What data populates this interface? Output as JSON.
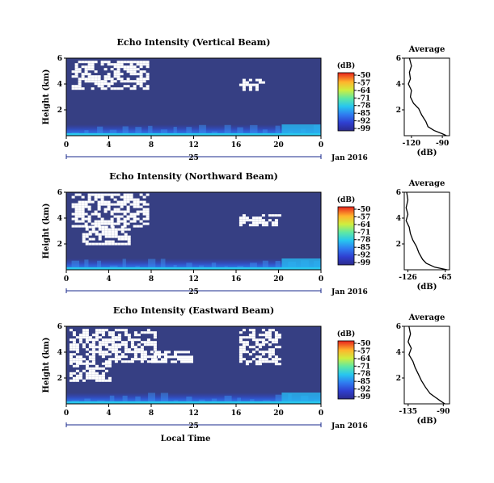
{
  "chart_data": [
    {
      "type": "heatmap",
      "title": "Echo Intensity (Vertical Beam)",
      "ylabel": "Height (km)",
      "yticks": [
        "6",
        "4",
        "2"
      ],
      "xticks": [
        "0",
        "4",
        "8",
        "12",
        "16",
        "20",
        "0"
      ],
      "xlim": [
        0,
        24
      ],
      "ylim": [
        0,
        6
      ],
      "date_day": "25",
      "date_month": "Jan 2016",
      "colorbar": {
        "unit": "(dB)",
        "ticks": [
          "-50",
          "-57",
          "-64",
          "-71",
          "-78",
          "-85",
          "-92",
          "-99"
        ]
      },
      "clutter_regions": [
        {
          "t0": 0.5,
          "t1": 7.8,
          "h0": 3.6,
          "h1": 5.8
        },
        {
          "t0": 16.3,
          "t1": 18.5,
          "h0": 3.6,
          "h1": 4.4
        }
      ],
      "profile": {
        "title": "Average",
        "xlabel": "(dB)",
        "xticks": [
          "-120",
          "-90"
        ],
        "yticks": [
          "6",
          "4",
          "2"
        ],
        "xlim": [
          -127,
          -83
        ],
        "points": [
          [
            -122,
            6.0
          ],
          [
            -120,
            5.4
          ],
          [
            -122,
            4.9
          ],
          [
            -121,
            4.4
          ],
          [
            -123,
            4.0
          ],
          [
            -120,
            3.5
          ],
          [
            -121,
            3.0
          ],
          [
            -118,
            2.5
          ],
          [
            -113,
            2.1
          ],
          [
            -110,
            1.6
          ],
          [
            -106,
            1.1
          ],
          [
            -104,
            0.7
          ],
          [
            -98,
            0.4
          ],
          [
            -90,
            0.15
          ],
          [
            -86,
            0.0
          ]
        ]
      }
    },
    {
      "type": "heatmap",
      "title": "Echo Intensity (Northward Beam)",
      "ylabel": "Height (km)",
      "yticks": [
        "6",
        "4",
        "2"
      ],
      "xticks": [
        "0",
        "4",
        "8",
        "12",
        "16",
        "20",
        "0"
      ],
      "xlim": [
        0,
        24
      ],
      "ylim": [
        0,
        6
      ],
      "date_day": "25",
      "date_month": "Jan 2016",
      "colorbar": {
        "unit": "(dB)",
        "ticks": [
          "-50",
          "-57",
          "-64",
          "-71",
          "-78",
          "-85",
          "-92",
          "-99"
        ]
      },
      "clutter_regions": [
        {
          "t0": 0.5,
          "t1": 7.8,
          "h0": 3.4,
          "h1": 5.9
        },
        {
          "t0": 1.5,
          "t1": 6.0,
          "h0": 2.0,
          "h1": 3.4
        },
        {
          "t0": 16.3,
          "t1": 20.2,
          "h0": 3.4,
          "h1": 4.3
        }
      ],
      "profile": {
        "title": "Average",
        "xlabel": "(dB)",
        "xticks": [
          "-126",
          "-65"
        ],
        "yticks": [
          "6",
          "4",
          "2"
        ],
        "xlim": [
          -132,
          -58
        ],
        "points": [
          [
            -128,
            6.0
          ],
          [
            -126,
            5.4
          ],
          [
            -129,
            4.8
          ],
          [
            -126,
            4.3
          ],
          [
            -129,
            3.8
          ],
          [
            -124,
            3.3
          ],
          [
            -122,
            2.8
          ],
          [
            -118,
            2.3
          ],
          [
            -112,
            1.8
          ],
          [
            -108,
            1.3
          ],
          [
            -102,
            0.8
          ],
          [
            -96,
            0.5
          ],
          [
            -82,
            0.2
          ],
          [
            -62,
            0.0
          ]
        ]
      }
    },
    {
      "type": "heatmap",
      "title": "Echo Intensity (Eastward Beam)",
      "ylabel": "Height (km)",
      "yticks": [
        "6",
        "4",
        "2"
      ],
      "xticks": [
        "0",
        "4",
        "8",
        "12",
        "16",
        "20",
        "0"
      ],
      "xlim": [
        0,
        24
      ],
      "ylim": [
        0,
        6
      ],
      "date_day": "25",
      "date_month": "Jan 2016",
      "xlabel": "Local Time",
      "colorbar": {
        "unit": "(dB)",
        "ticks": [
          "-50",
          "-57",
          "-64",
          "-71",
          "-78",
          "-85",
          "-92",
          "-99"
        ]
      },
      "clutter_regions": [
        {
          "t0": 0.3,
          "t1": 8.5,
          "h0": 3.2,
          "h1": 5.8
        },
        {
          "t0": 0.3,
          "t1": 4.0,
          "h0": 1.8,
          "h1": 3.2
        },
        {
          "t0": 8.0,
          "t1": 12.0,
          "h0": 3.3,
          "h1": 4.1
        },
        {
          "t0": 16.3,
          "t1": 20.2,
          "h0": 3.1,
          "h1": 5.8
        }
      ],
      "profile": {
        "title": "Average",
        "xlabel": "(dB)",
        "xticks": [
          "-135",
          "-90"
        ],
        "yticks": [
          "6",
          "4",
          "2"
        ],
        "xlim": [
          -140,
          -82
        ],
        "points": [
          [
            -134,
            6.0
          ],
          [
            -132,
            5.4
          ],
          [
            -135,
            4.8
          ],
          [
            -131,
            4.3
          ],
          [
            -134,
            3.8
          ],
          [
            -129,
            3.3
          ],
          [
            -126,
            2.8
          ],
          [
            -122,
            2.3
          ],
          [
            -118,
            1.8
          ],
          [
            -113,
            1.3
          ],
          [
            -107,
            0.8
          ],
          [
            -100,
            0.5
          ],
          [
            -93,
            0.2
          ],
          [
            -88,
            0.0
          ]
        ]
      }
    }
  ]
}
